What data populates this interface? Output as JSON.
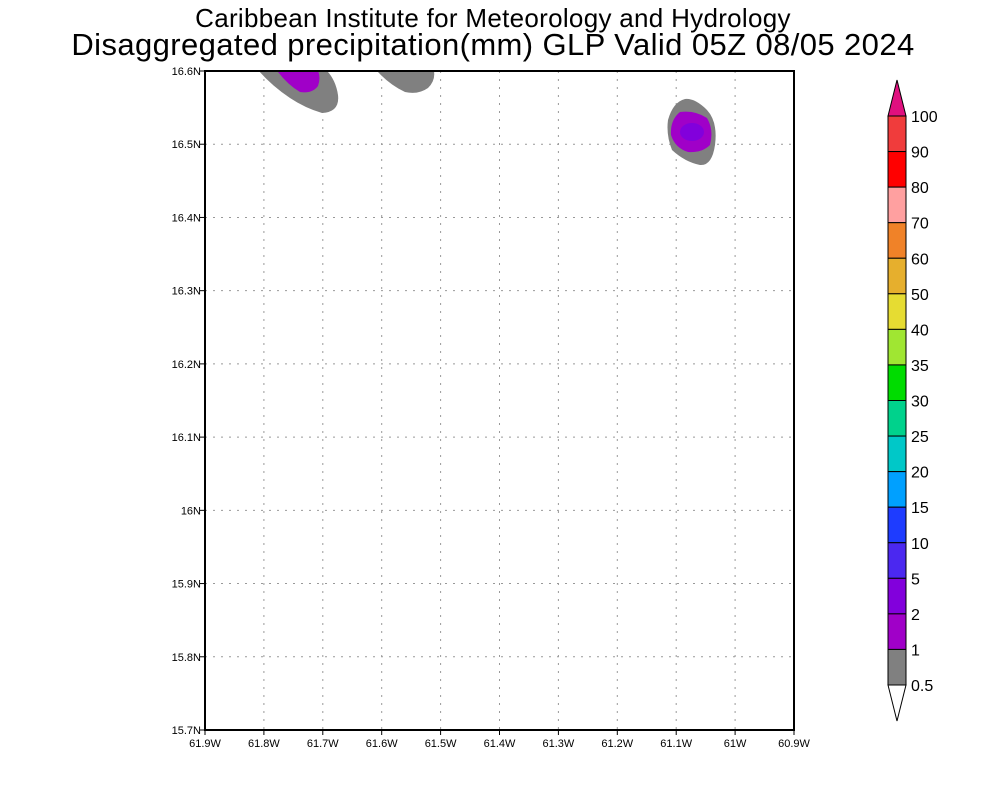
{
  "header": {
    "title_line1": "Caribbean Institute for Meteorology and Hydrology",
    "title_line2": "Disaggregated precipitation(mm) GLP Valid 05Z 08/05 2024"
  },
  "chart_data": {
    "type": "heatmap",
    "title": "Disaggregated precipitation(mm) GLP Valid 05Z 08/05 2024",
    "xlim": [
      -61.9,
      -60.9
    ],
    "ylim": [
      15.7,
      16.6
    ],
    "x_ticks": [
      "61.9W",
      "61.8W",
      "61.7W",
      "61.6W",
      "61.5W",
      "61.4W",
      "61.3W",
      "61.2W",
      "61.1W",
      "61W",
      "60.9W"
    ],
    "y_ticks": [
      "15.7N",
      "15.8N",
      "15.9N",
      "16N",
      "16.1N",
      "16.2N",
      "16.3N",
      "16.4N",
      "16.5N",
      "16.6N"
    ],
    "grid": true,
    "legend_placement": "right",
    "colorbar_labels": [
      "100",
      "90",
      "80",
      "70",
      "60",
      "50",
      "40",
      "35",
      "30",
      "25",
      "20",
      "15",
      "10",
      "5",
      "2",
      "1",
      "0.5"
    ],
    "colorbar_colors": [
      "#f03c3c",
      "#ff0000",
      "#ffa0a0",
      "#f08228",
      "#e6af2d",
      "#e6dc32",
      "#a0e632",
      "#00dc00",
      "#00d28c",
      "#00c8c8",
      "#00a0ff",
      "#1e3cff",
      "#4b28f0",
      "#8200dc",
      "#a000c8",
      "#808080"
    ],
    "colorbar_top_color": "#e0107f",
    "colorbar_bottom_color": "#ffffff",
    "precip_cells": [
      {
        "lon": -61.73,
        "lat": 16.59,
        "max_class": "1-2"
      },
      {
        "lon": -61.56,
        "lat": 16.6,
        "max_class": "0.5-1"
      },
      {
        "lon": -61.07,
        "lat": 16.52,
        "max_class": "2-5"
      }
    ]
  }
}
